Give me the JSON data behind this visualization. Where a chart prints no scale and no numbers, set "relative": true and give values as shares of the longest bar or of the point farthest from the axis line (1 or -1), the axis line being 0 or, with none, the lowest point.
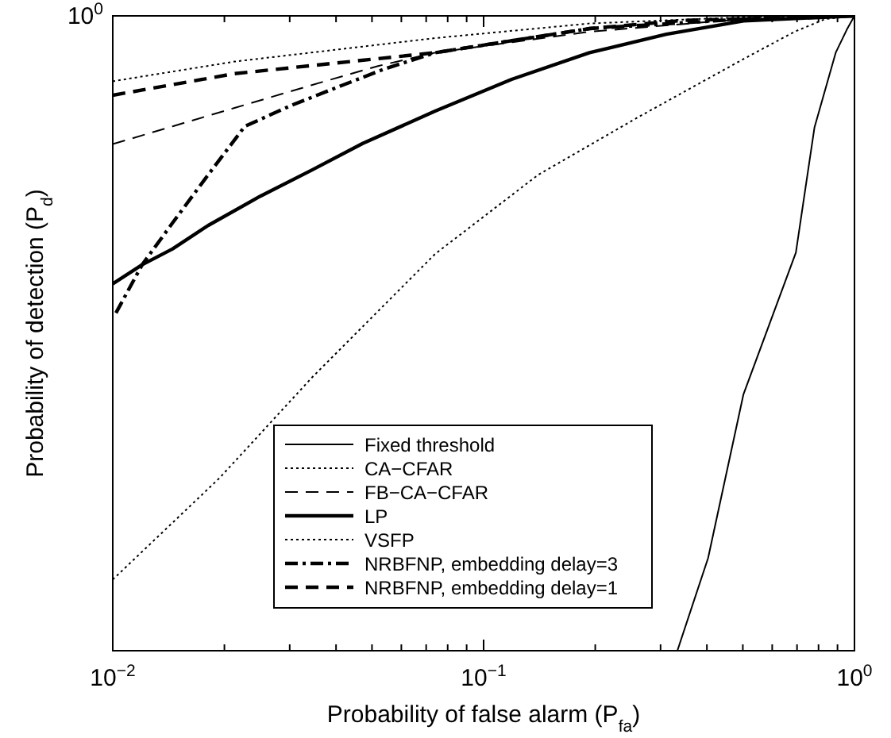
{
  "chart_data": {
    "type": "line",
    "xlabel": "Probability of false alarm (P$_{fa}$)",
    "ylabel": "Probability of detection (P$_{d}$)",
    "log": "x",
    "xlim": [
      0.01,
      1
    ],
    "relative": true,
    "annotations": [
      "10$^{0}$"
    ],
    "xticks": [
      {
        "value": 0.01,
        "label": "10$^{−2}$"
      },
      {
        "value": 0.02,
        "label": null
      },
      {
        "value": 0.03,
        "label": null
      },
      {
        "value": 0.04,
        "label": null
      },
      {
        "value": 0.05,
        "label": null
      },
      {
        "value": 0.06,
        "label": null
      },
      {
        "value": 0.07,
        "label": null
      },
      {
        "value": 0.08,
        "label": null
      },
      {
        "value": 0.09,
        "label": null
      },
      {
        "value": 0.1,
        "label": "10$^{−1}$"
      },
      {
        "value": 0.2,
        "label": null
      },
      {
        "value": 0.3,
        "label": null
      },
      {
        "value": 0.4,
        "label": null
      },
      {
        "value": 0.5,
        "label": null
      },
      {
        "value": 0.6,
        "label": null
      },
      {
        "value": 0.7,
        "label": null
      },
      {
        "value": 0.8,
        "label": null
      },
      {
        "value": 0.9,
        "label": null
      },
      {
        "value": 1,
        "label": "10$^{0}$"
      }
    ],
    "grid": false,
    "legend": "bottom",
    "marker": "none",
    "series": [
      {
        "name": "Fixed threshold",
        "color": "#000000",
        "line_style": "solid",
        "x": [
          0.333,
          0.403,
          0.502,
          0.695,
          0.78,
          0.89,
          0.953,
          1
        ],
        "values": [
          0,
          0.146,
          0.404,
          0.627,
          0.824,
          0.942,
          0.978,
          1
        ]
      },
      {
        "name": "CA−CFAR",
        "color": "#000000",
        "line_style": "dotted",
        "x": [
          0.01,
          0.0194,
          0.0344,
          0.074,
          0.1406,
          0.264,
          0.502,
          0.689,
          0.834,
          1
        ],
        "values": [
          0.112,
          0.272,
          0.43,
          0.625,
          0.75,
          0.842,
          0.932,
          0.975,
          0.995,
          1
        ]
      },
      {
        "name": "FB−CA−CFAR",
        "color": "#000000",
        "line_style": "dashed",
        "x": [
          0.01,
          0.0145,
          0.0213,
          0.0344,
          0.0519,
          0.074,
          0.193,
          0.502,
          1
        ],
        "values": [
          0.798,
          0.826,
          0.855,
          0.891,
          0.921,
          0.942,
          0.975,
          0.995,
          1
        ]
      },
      {
        "name": "LP",
        "color": "#000000",
        "line_style": "solid",
        "x": [
          0.01,
          0.012,
          0.0145,
          0.0181,
          0.025,
          0.0344,
          0.0472,
          0.074,
          0.119,
          0.193,
          0.311,
          0.502,
          1
        ],
        "values": [
          0.578,
          0.608,
          0.633,
          0.67,
          0.716,
          0.757,
          0.799,
          0.85,
          0.9,
          0.942,
          0.971,
          0.992,
          1
        ]
      },
      {
        "name": "VSFP",
        "color": "#000000",
        "line_style": "dotted",
        "x": [
          0.01,
          0.0213,
          0.074,
          0.193,
          0.502,
          1
        ],
        "values": [
          0.897,
          0.928,
          0.965,
          0.988,
          0.998,
          1
        ]
      },
      {
        "name": "NRBFNP, embedding delay=3",
        "color": "#000000",
        "line_style": "dashdot",
        "x": [
          0.0102,
          0.012,
          0.0145,
          0.0181,
          0.0227,
          0.0303,
          0.0389,
          0.0538,
          0.074,
          0.193,
          0.502,
          1
        ],
        "values": [
          0.532,
          0.608,
          0.674,
          0.75,
          0.826,
          0.859,
          0.884,
          0.916,
          0.942,
          0.98,
          0.995,
          1
        ]
      },
      {
        "name": "NRBFNP, embedding delay=1",
        "color": "#000000",
        "line_style": "dashed",
        "x": [
          0.01,
          0.0213,
          0.074,
          0.193,
          0.35,
          1
        ],
        "values": [
          0.875,
          0.909,
          0.942,
          0.98,
          0.993,
          1
        ]
      }
    ]
  }
}
